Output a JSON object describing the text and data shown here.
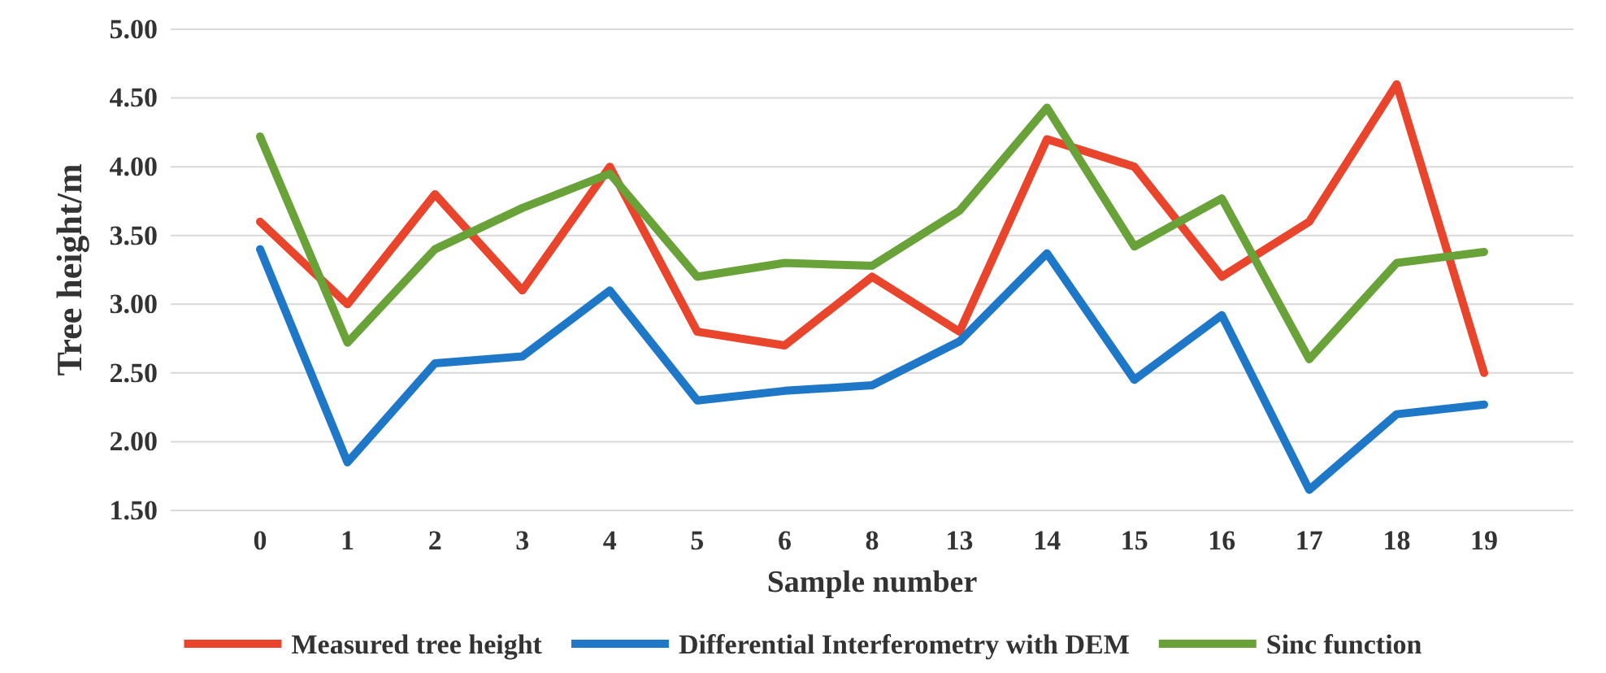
{
  "chart_data": {
    "type": "line",
    "xlabel": "Sample number",
    "ylabel": "Tree height/m",
    "categories": [
      "0",
      "1",
      "2",
      "3",
      "4",
      "5",
      "6",
      "8",
      "13",
      "14",
      "15",
      "16",
      "17",
      "18",
      "19"
    ],
    "series": [
      {
        "name": "Measured tree height",
        "color": "#e8452c",
        "values": [
          3.6,
          3.0,
          3.8,
          3.1,
          4.0,
          2.8,
          2.7,
          3.2,
          2.8,
          4.2,
          4.0,
          3.2,
          3.6,
          4.6,
          2.5
        ]
      },
      {
        "name": "Differential Interferometry with DEM",
        "color": "#1f77c8",
        "values": [
          3.4,
          1.85,
          2.57,
          2.62,
          3.1,
          2.3,
          2.37,
          2.41,
          2.73,
          3.37,
          2.45,
          2.92,
          1.65,
          2.2,
          2.27
        ]
      },
      {
        "name": "Sinc function",
        "color": "#6aa23a",
        "values": [
          4.22,
          2.72,
          3.4,
          3.7,
          3.95,
          3.2,
          3.3,
          3.28,
          3.68,
          4.43,
          3.42,
          3.77,
          2.6,
          3.3,
          3.38
        ]
      }
    ],
    "ylim": [
      1.5,
      5.0
    ],
    "yticks": [
      {
        "value": 1.5,
        "label": "1.50"
      },
      {
        "value": 2.0,
        "label": "2.00"
      },
      {
        "value": 2.5,
        "label": "2.50"
      },
      {
        "value": 3.0,
        "label": "3.00"
      },
      {
        "value": 3.5,
        "label": "3.50"
      },
      {
        "value": 4.0,
        "label": "4.00"
      },
      {
        "value": 4.5,
        "label": "4.50"
      },
      {
        "value": 5.0,
        "label": "5.00"
      }
    ],
    "grid": "y",
    "legend": "bottom",
    "marker": "none",
    "line_style": "solid"
  }
}
